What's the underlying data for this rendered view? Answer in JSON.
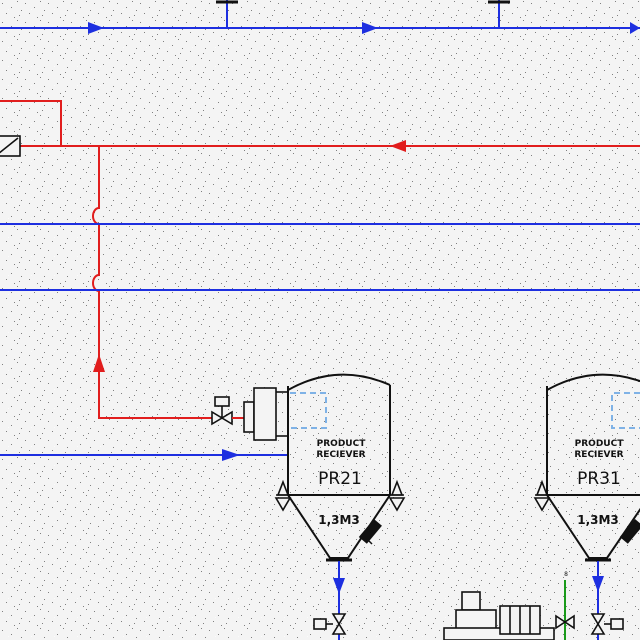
{
  "colors": {
    "background": "#f4f4f4",
    "blue_line": "#1d2fe0",
    "red_line": "#e11d1d",
    "green_line": "#1a9a1a",
    "equipment": "#111111",
    "dashed": "#7fb2e6"
  },
  "receivers": [
    {
      "label_line1": "PRODUCT",
      "label_line2": "RECIEVER",
      "tag": "PR21",
      "volume": "1,3M3"
    },
    {
      "label_line1": "PRODUCT",
      "label_line2": "RECIEVER",
      "tag": "PR31",
      "volume": "1,3M3"
    }
  ],
  "small_label": "8"
}
